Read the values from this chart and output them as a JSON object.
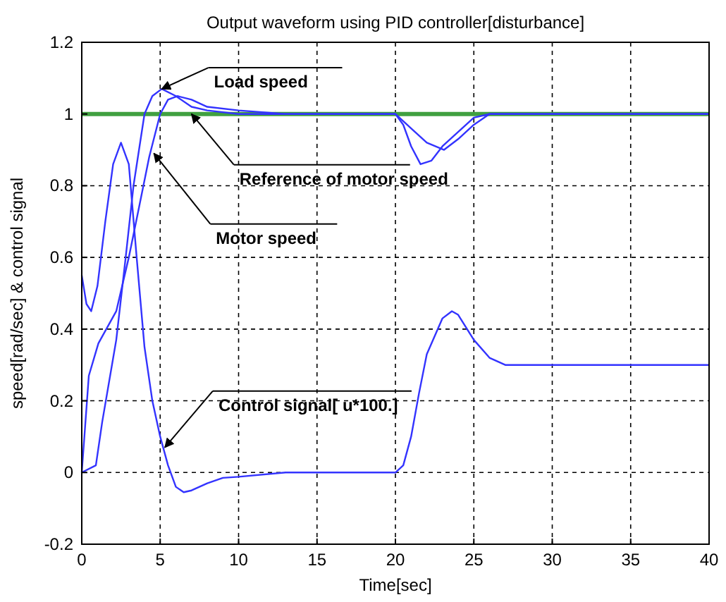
{
  "chart_data": {
    "type": "line",
    "title": "Output waveform using PID controller[disturbance]",
    "xlabel": "Time[sec]",
    "ylabel": "speed[rad/sec] & control signal",
    "xlim": [
      0,
      40
    ],
    "xticks": [
      0,
      5,
      10,
      15,
      20,
      25,
      30,
      35,
      40
    ],
    "ylim": [
      -0.2,
      1.2
    ],
    "yticks": [
      -0.2,
      0,
      0.2,
      0.4,
      0.6,
      0.8,
      1,
      1.2
    ],
    "grid": true,
    "marker": "none",
    "line_style": "solid",
    "series": [
      {
        "color": "#40a040",
        "x": [
          0,
          40
        ],
        "values": [
          1,
          1
        ]
      },
      {
        "color": "#3333ff",
        "x": [
          0,
          0.9,
          1.3,
          2.2,
          2.8,
          3.3,
          4,
          4.5,
          5.1,
          6,
          7,
          8,
          10,
          20,
          20.5,
          21,
          21.6,
          22.3,
          23,
          24,
          25,
          26,
          40
        ],
        "values": [
          0,
          0.02,
          0.14,
          0.37,
          0.6,
          0.8,
          1.0,
          1.05,
          1.07,
          1.05,
          1.02,
          1.01,
          1.0,
          1,
          0.97,
          0.91,
          0.86,
          0.87,
          0.91,
          0.95,
          0.99,
          1.0,
          1
        ]
      },
      {
        "color": "#3333ff",
        "x": [
          0,
          0.45,
          1.06,
          2.2,
          3,
          3.7,
          4.3,
          5,
          5.5,
          6.1,
          7,
          8,
          10,
          13,
          20,
          21,
          22,
          23.1,
          24,
          25,
          26,
          40
        ],
        "values": [
          0,
          0.27,
          0.36,
          0.45,
          0.6,
          0.75,
          0.88,
          1.0,
          1.04,
          1.05,
          1.04,
          1.02,
          1.01,
          1.0,
          1,
          0.96,
          0.92,
          0.9,
          0.93,
          0.97,
          1.0,
          1
        ]
      },
      {
        "color": "#3333ff",
        "x": [
          0,
          0.3,
          0.6,
          1,
          1.5,
          2,
          2.5,
          3,
          3.5,
          4,
          4.5,
          5,
          5.5,
          6,
          6.5,
          7,
          8,
          9,
          10,
          13,
          20,
          20.5,
          21,
          21.5,
          22,
          23,
          23.6,
          24,
          25,
          26,
          27,
          40
        ],
        "values": [
          0.55,
          0.47,
          0.45,
          0.52,
          0.7,
          0.86,
          0.92,
          0.86,
          0.6,
          0.35,
          0.2,
          0.1,
          0.02,
          -0.04,
          -0.055,
          -0.05,
          -0.03,
          -0.015,
          -0.012,
          0,
          0,
          0.02,
          0.1,
          0.22,
          0.33,
          0.43,
          0.45,
          0.44,
          0.37,
          0.32,
          0.3,
          0.3
        ]
      }
    ],
    "annotations": [
      {
        "text": "Load speed",
        "x": 5.1,
        "y": 1.07
      },
      {
        "text": "Reference of motor speed",
        "x": 7,
        "y": 1
      },
      {
        "text": "Motor speed",
        "x": 4.6,
        "y": 0.89
      },
      {
        "text": "Control signal[ u*100.]",
        "x": 5.3,
        "y": 0.07
      }
    ]
  }
}
